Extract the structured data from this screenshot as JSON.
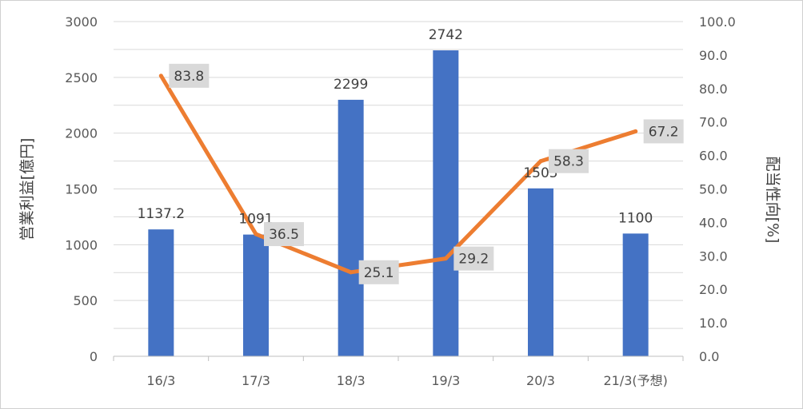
{
  "chart_data": {
    "type": "bar",
    "categories": [
      "16/3",
      "17/3",
      "18/3",
      "19/3",
      "20/3",
      "21/3(予想)"
    ],
    "series": [
      {
        "type": "bar",
        "axis": "left",
        "values": [
          1137.2,
          1091,
          2299,
          2742,
          1505,
          1100
        ],
        "labels": [
          "1137.2",
          "1091",
          "2299",
          "2742",
          "1505",
          "1100"
        ],
        "color": "#4472c4"
      },
      {
        "type": "line",
        "axis": "right",
        "values": [
          83.8,
          36.5,
          25.1,
          29.2,
          58.3,
          67.2
        ],
        "labels": [
          "83.8",
          "36.5",
          "25.1",
          "29.2",
          "58.3",
          "67.2"
        ],
        "color": "#ed7d31"
      }
    ],
    "y_left": {
      "label": "営業利益[億円]",
      "ylim": [
        0,
        3000
      ],
      "ticks": [
        "0",
        "500",
        "1000",
        "1500",
        "2000",
        "2500",
        "3000"
      ]
    },
    "y_right": {
      "label": "配当性向[%]",
      "ylim": [
        0,
        100
      ],
      "ticks": [
        "0.0",
        "10.0",
        "20.0",
        "30.0",
        "40.0",
        "50.0",
        "60.0",
        "70.0",
        "80.0",
        "90.0",
        "100.0"
      ]
    },
    "grid": true,
    "label_box_color": "#d9d9d9",
    "grid_color": "#d9d9d9"
  }
}
